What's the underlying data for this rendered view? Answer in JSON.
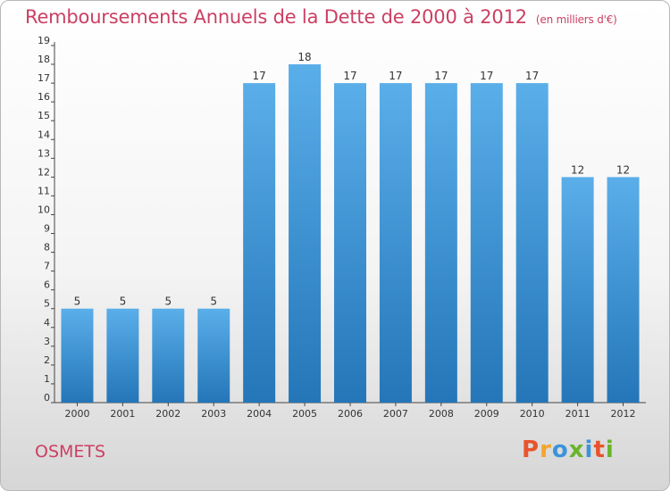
{
  "header": {
    "title": "Remboursements Annuels de la Dette de 2000 à 2012",
    "unit": "(en milliers d'€)"
  },
  "footer": {
    "city": "OSMETS",
    "brand": [
      "P",
      "r",
      "o",
      "x",
      "i",
      "t",
      "i"
    ]
  },
  "colors": {
    "title": "#cc3f63",
    "bar_top": "#5aaee9",
    "bar_bottom": "#2476b8",
    "brand": [
      "#e8542c",
      "#f2a52a",
      "#3b94d9",
      "#6ab42d",
      "#3b94d9",
      "#e8542c",
      "#6ab42d"
    ]
  },
  "chart_data": {
    "type": "bar",
    "title": "Remboursements Annuels de la Dette de 2000 à 2012",
    "ylabel": "",
    "xlabel": "",
    "categories": [
      "2000",
      "2001",
      "2002",
      "2003",
      "2004",
      "2005",
      "2006",
      "2007",
      "2008",
      "2009",
      "2010",
      "2011",
      "2012"
    ],
    "values": [
      5,
      5,
      5,
      5,
      17,
      18,
      17,
      17,
      17,
      17,
      17,
      12,
      12
    ],
    "ylim": [
      0,
      19
    ],
    "yticks": [
      0,
      1,
      2,
      3,
      4,
      5,
      6,
      7,
      8,
      9,
      10,
      11,
      12,
      13,
      14,
      15,
      16,
      17,
      18,
      19
    ],
    "grid": false,
    "data_labels": true
  }
}
